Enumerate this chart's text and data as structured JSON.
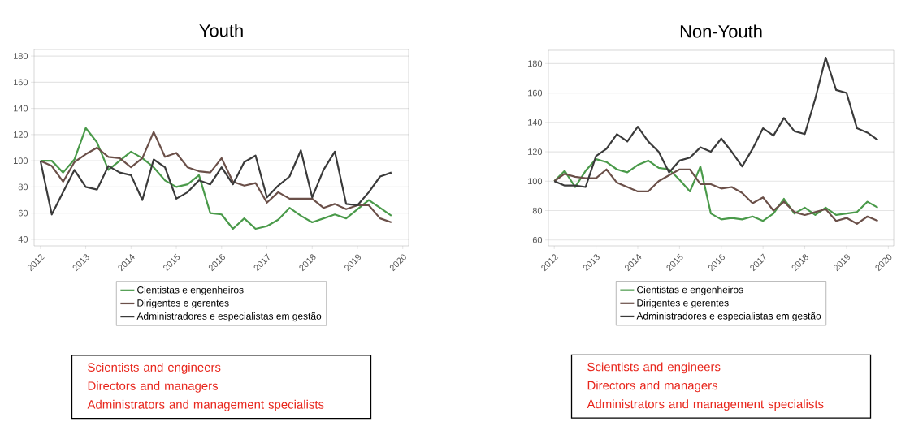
{
  "chart_data": [
    {
      "type": "line",
      "title": "Youth",
      "x": [
        2012,
        2012.25,
        2012.5,
        2012.75,
        2013,
        2013.25,
        2013.5,
        2013.75,
        2014,
        2014.25,
        2014.5,
        2014.75,
        2015,
        2015.25,
        2015.5,
        2015.75,
        2016,
        2016.25,
        2016.5,
        2016.75,
        2017,
        2017.25,
        2017.5,
        2017.75,
        2018,
        2018.25,
        2018.5,
        2018.75,
        2019,
        2019.25,
        2019.5,
        2019.75
      ],
      "series": [
        {
          "name": "Cientistas e engenheiros",
          "color": "#4a9a4a",
          "values": [
            100,
            100,
            91,
            101,
            125,
            114,
            93,
            100,
            107,
            102,
            95,
            85,
            80,
            82,
            89,
            60,
            59,
            48,
            56,
            48,
            50,
            55,
            64,
            58,
            53,
            56,
            59,
            56,
            63,
            70,
            64,
            58
          ]
        },
        {
          "name": "Dirigentes e gerentes",
          "color": "#6b5049",
          "values": [
            100,
            96,
            84,
            99,
            105,
            110,
            103,
            102,
            95,
            102,
            122,
            103,
            106,
            95,
            92,
            91,
            102,
            84,
            81,
            83,
            68,
            76,
            71,
            71,
            71,
            64,
            67,
            63,
            66,
            66,
            56,
            53
          ]
        },
        {
          "name": "Administradores e especialistas em gestão",
          "color": "#3a3a3a",
          "values": [
            100,
            59,
            76,
            93,
            80,
            78,
            96,
            91,
            89,
            70,
            101,
            95,
            71,
            76,
            85,
            82,
            95,
            82,
            99,
            104,
            72,
            81,
            88,
            108,
            72,
            93,
            107,
            67,
            66,
            76,
            88,
            91
          ]
        }
      ],
      "xlim": [
        2011.86,
        2020.13
      ],
      "ylim": [
        35,
        185
      ],
      "xticks": [
        2012,
        2013,
        2014,
        2015,
        2016,
        2017,
        2018,
        2019,
        2020
      ],
      "yticks": [
        40,
        60,
        80,
        100,
        120,
        140,
        160,
        180
      ],
      "grid": "y",
      "legend": "bottom",
      "annotations": [
        "Scientists and engineers",
        "Directors and managers",
        "Administrators and management specialists"
      ]
    },
    {
      "type": "line",
      "title": "Non-Youth",
      "x": [
        2012,
        2012.25,
        2012.5,
        2012.75,
        2013,
        2013.25,
        2013.5,
        2013.75,
        2014,
        2014.25,
        2014.5,
        2014.75,
        2015,
        2015.25,
        2015.5,
        2015.75,
        2016,
        2016.25,
        2016.5,
        2016.75,
        2017,
        2017.25,
        2017.5,
        2017.75,
        2018,
        2018.25,
        2018.5,
        2018.75,
        2019,
        2019.25,
        2019.5,
        2019.75
      ],
      "series": [
        {
          "name": "Cientistas e engenheiros",
          "color": "#4a9a4a",
          "values": [
            100,
            107,
            96,
            107,
            115,
            113,
            108,
            106,
            111,
            114,
            109,
            108,
            101,
            93,
            110,
            78,
            74,
            75,
            74,
            76,
            73,
            78,
            88,
            78,
            82,
            77,
            82,
            77,
            78,
            79,
            86,
            82
          ]
        },
        {
          "name": "Dirigentes e gerentes",
          "color": "#6b5049",
          "values": [
            100,
            105,
            103,
            102,
            102,
            108,
            99,
            96,
            93,
            93,
            100,
            104,
            108,
            108,
            98,
            98,
            95,
            96,
            92,
            85,
            89,
            80,
            86,
            79,
            77,
            79,
            81,
            73,
            75,
            71,
            76,
            73
          ]
        },
        {
          "name": "Administradores e especialistas em gestão",
          "color": "#3a3a3a",
          "values": [
            100,
            97,
            97,
            96,
            117,
            122,
            132,
            127,
            137,
            127,
            120,
            106,
            114,
            116,
            123,
            120,
            129,
            120,
            110,
            122,
            136,
            131,
            143,
            134,
            132,
            156,
            184,
            162,
            160,
            136,
            133,
            128
          ]
        }
      ],
      "xlim": [
        2011.86,
        2020.13
      ],
      "ylim": [
        56,
        189
      ],
      "xticks": [
        2012,
        2013,
        2014,
        2015,
        2016,
        2017,
        2018,
        2019,
        2020
      ],
      "yticks": [
        60,
        80,
        100,
        120,
        140,
        160,
        180
      ],
      "grid": "y",
      "legend": "bottom",
      "annotations": [
        "Scientists and engineers",
        "Directors and managers",
        "Administrators and management specialists"
      ]
    }
  ]
}
